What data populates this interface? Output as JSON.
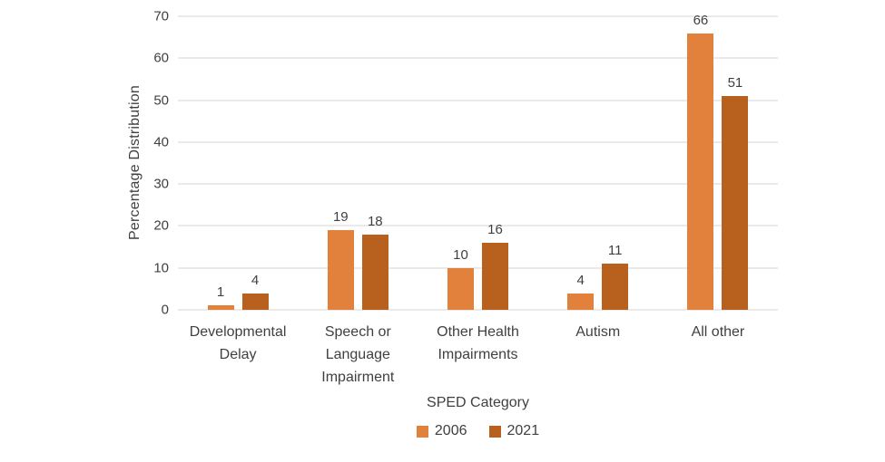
{
  "chart_data": {
    "type": "bar",
    "title": "",
    "categories": [
      "Developmental Delay",
      "Speech or Language Impairment",
      "Other Health Impairments",
      "Autism",
      "All other"
    ],
    "series": [
      {
        "name": "2006",
        "color": "#E2813B",
        "values": [
          1,
          19,
          10,
          4,
          66
        ]
      },
      {
        "name": "2021",
        "color": "#B8611F",
        "values": [
          4,
          18,
          16,
          11,
          51
        ]
      }
    ],
    "xlabel": "SPED Category",
    "ylabel": "Percentage Distribution",
    "ylim": [
      0,
      70
    ],
    "yticks": [
      0,
      10,
      20,
      30,
      40,
      50,
      60,
      70
    ],
    "grid": "horizontal",
    "legend_position": "bottom",
    "data_labels": true
  },
  "colors": {
    "gridline": "#D6D6D6",
    "text": "#404040",
    "background": "#FFFFFF"
  }
}
